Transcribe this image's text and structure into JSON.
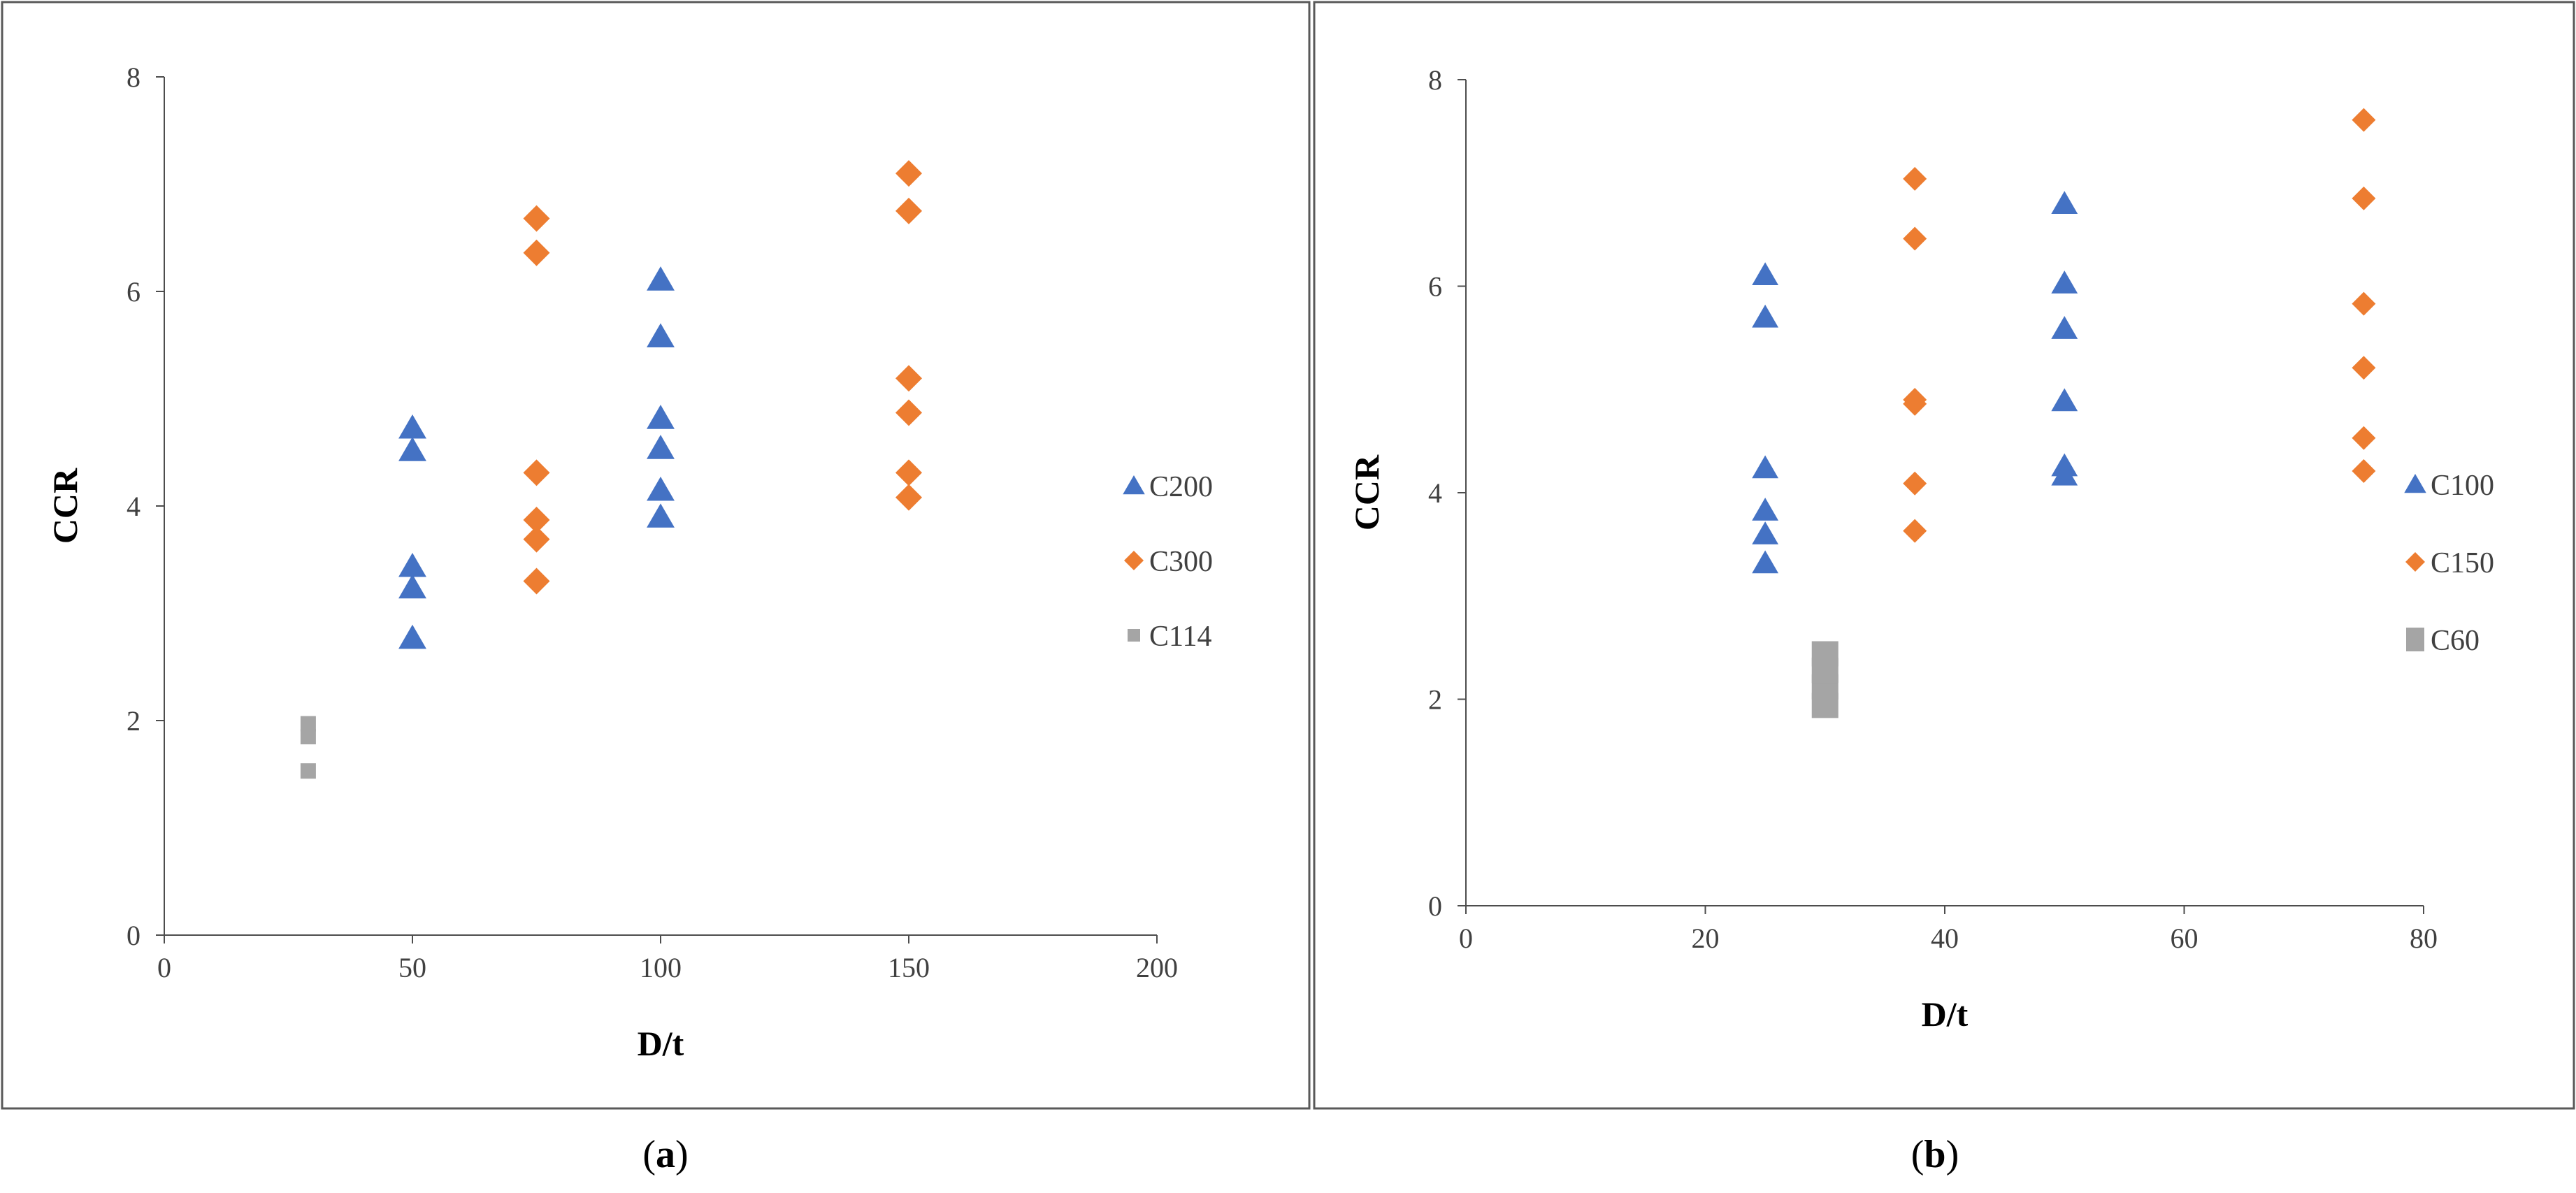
{
  "figure": {
    "panels": [
      {
        "caption_open": "(",
        "caption_letter": "a",
        "caption_close": ")"
      },
      {
        "caption_open": "(",
        "caption_letter": "b",
        "caption_close": ")"
      }
    ]
  },
  "chart_data": [
    {
      "type": "scatter",
      "xlabel": "D/t",
      "ylabel": "CCR",
      "xlim": [
        0,
        200
      ],
      "ylim": [
        0,
        8
      ],
      "xticks": [
        0,
        50,
        100,
        150,
        200
      ],
      "yticks": [
        0,
        2,
        4,
        6,
        8
      ],
      "grid": false,
      "legend_position": "right",
      "series": [
        {
          "name": "C200",
          "marker": "triangle",
          "color": "#4472C4",
          "points": [
            [
              50,
              2.77
            ],
            [
              50,
              3.24
            ],
            [
              50,
              3.44
            ],
            [
              50,
              4.52
            ],
            [
              50,
              4.73
            ],
            [
              100,
              3.9
            ],
            [
              100,
              4.15
            ],
            [
              100,
              4.54
            ],
            [
              100,
              4.82
            ],
            [
              100,
              5.58
            ],
            [
              100,
              6.11
            ]
          ]
        },
        {
          "name": "C300",
          "marker": "diamond",
          "color": "#ED7D31",
          "points": [
            [
              75,
              3.3
            ],
            [
              75,
              3.69
            ],
            [
              75,
              3.87
            ],
            [
              75,
              4.31
            ],
            [
              75,
              6.36
            ],
            [
              75,
              6.68
            ],
            [
              150,
              4.08
            ],
            [
              150,
              4.31
            ],
            [
              150,
              4.87
            ],
            [
              150,
              5.19
            ],
            [
              150,
              6.75
            ],
            [
              150,
              7.1
            ]
          ]
        },
        {
          "name": "C114",
          "marker": "square",
          "color": "#A5A5A5",
          "points": [
            [
              29,
              1.53
            ],
            [
              29,
              1.85
            ],
            [
              29,
              1.97
            ]
          ]
        }
      ]
    },
    {
      "type": "scatter",
      "xlabel": "D/t",
      "ylabel": "CCR",
      "xlim": [
        0,
        80
      ],
      "ylim": [
        0,
        8
      ],
      "xticks": [
        0,
        20,
        40,
        60,
        80
      ],
      "yticks": [
        0,
        2,
        4,
        6,
        8
      ],
      "grid": false,
      "legend_position": "right",
      "series": [
        {
          "name": "C100",
          "marker": "triangle",
          "color": "#4472C4",
          "points": [
            [
              25,
              3.32
            ],
            [
              25,
              3.6
            ],
            [
              25,
              3.83
            ],
            [
              25,
              4.24
            ],
            [
              25,
              5.7
            ],
            [
              25,
              6.11
            ],
            [
              50,
              4.17
            ],
            [
              50,
              4.26
            ],
            [
              50,
              4.89
            ],
            [
              50,
              5.59
            ],
            [
              50,
              6.03
            ],
            [
              50,
              6.8
            ]
          ]
        },
        {
          "name": "C150",
          "marker": "diamond",
          "color": "#ED7D31",
          "points": [
            [
              37.5,
              3.63
            ],
            [
              37.5,
              4.09
            ],
            [
              37.5,
              4.86
            ],
            [
              37.5,
              4.9
            ],
            [
              37.5,
              6.46
            ],
            [
              37.5,
              7.04
            ],
            [
              75,
              4.21
            ],
            [
              75,
              4.53
            ],
            [
              75,
              5.21
            ],
            [
              75,
              5.83
            ],
            [
              75,
              6.85
            ],
            [
              75,
              7.61
            ]
          ]
        },
        {
          "name": "C60",
          "marker": "square",
          "color": "#A5A5A5",
          "points": [
            [
              30,
              1.94
            ],
            [
              30,
              2.12
            ],
            [
              30,
              2.28
            ],
            [
              30,
              2.44
            ]
          ]
        }
      ]
    }
  ]
}
